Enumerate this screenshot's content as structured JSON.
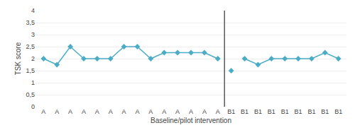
{
  "chart_data": {
    "type": "line",
    "categories": [
      "A",
      "A",
      "A",
      "A",
      "A",
      "A",
      "A",
      "A",
      "A",
      "A",
      "A",
      "A",
      "A",
      "A",
      "B1",
      "B1",
      "B1",
      "B1",
      "B1",
      "B1",
      "B1",
      "B1",
      "B1"
    ],
    "series": [
      {
        "color": "#4bacc6",
        "marker": "diamond",
        "line_style": "solid",
        "values": [
          2.0,
          1.75,
          2.5,
          2.0,
          2.0,
          2.0,
          2.5,
          2.5,
          2.0,
          2.25,
          2.25,
          2.25,
          2.25,
          2.0,
          null,
          null,
          null,
          null,
          null,
          null,
          null,
          null,
          null
        ]
      },
      {
        "color": "#4bacc6",
        "marker": "diamond",
        "line_style": "solid",
        "values": [
          null,
          null,
          null,
          null,
          null,
          null,
          null,
          null,
          null,
          null,
          null,
          null,
          null,
          null,
          1.5,
          null,
          null,
          null,
          null,
          null,
          null,
          null,
          null
        ]
      },
      {
        "color": "#4bacc6",
        "marker": "diamond",
        "line_style": "solid",
        "values": [
          null,
          null,
          null,
          null,
          null,
          null,
          null,
          null,
          null,
          null,
          null,
          null,
          null,
          null,
          null,
          2.0,
          1.75,
          2.0,
          2.0,
          2.0,
          2.0,
          2.25,
          2.0
        ]
      }
    ],
    "xlabel": "Baseline/pilot intervention",
    "ylabel": "TSK score",
    "ylim": [
      0,
      4
    ],
    "yticks": [
      0,
      {
        "value": 0.5,
        "label": "0,5"
      },
      1,
      {
        "value": 1.5,
        "label": "1,5"
      },
      2,
      {
        "value": 2.5,
        "label": "2,5"
      },
      3,
      {
        "value": 3.5,
        "label": "3,5"
      },
      4
    ],
    "grid": true
  }
}
